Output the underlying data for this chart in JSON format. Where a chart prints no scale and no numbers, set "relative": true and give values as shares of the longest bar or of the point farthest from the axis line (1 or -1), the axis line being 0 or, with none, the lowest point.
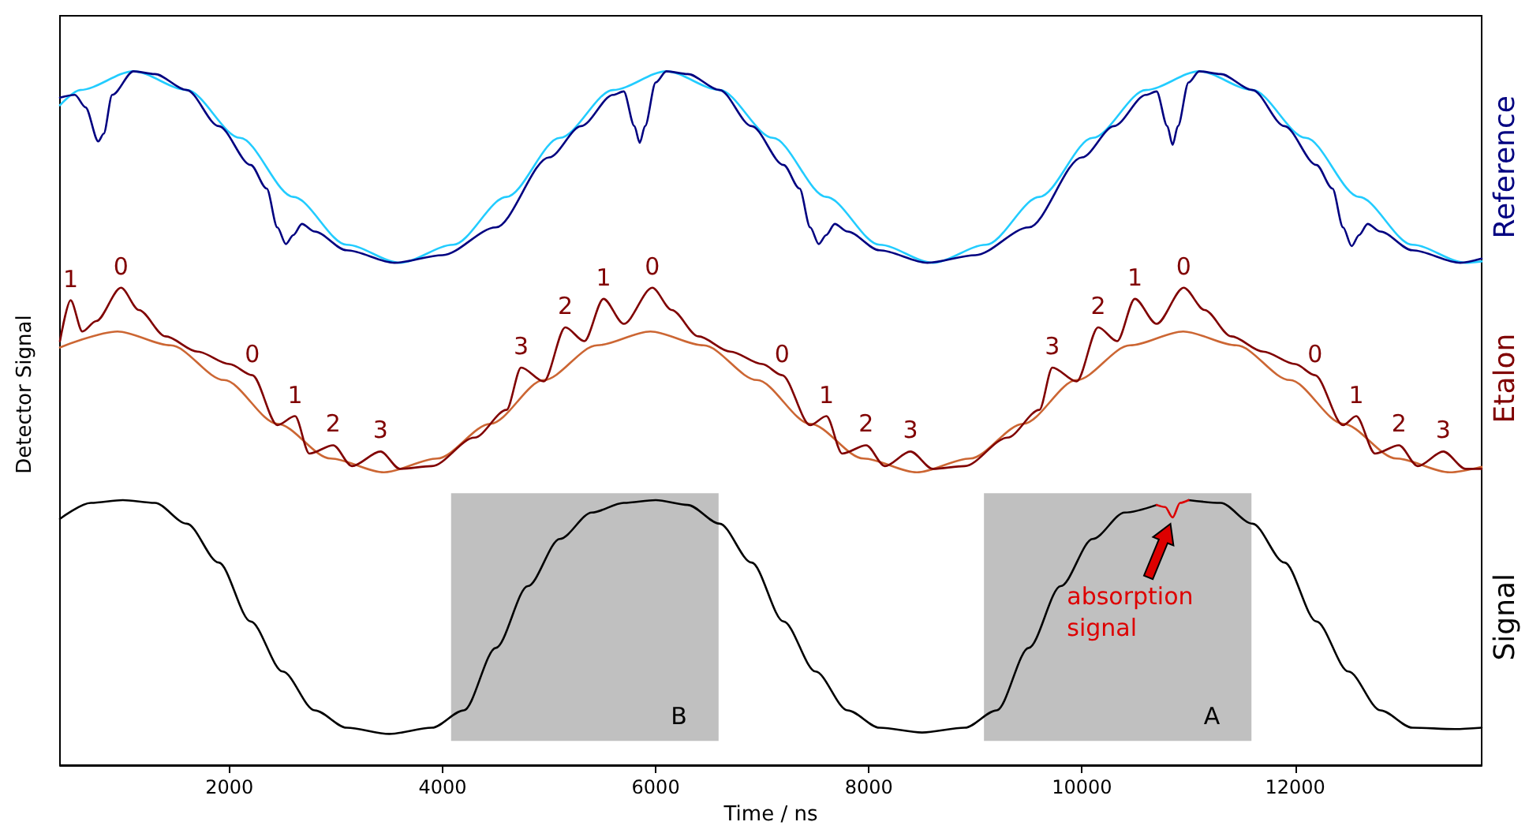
{
  "chart_data": {
    "type": "line",
    "xlabel": "Time / ns",
    "ylabel": "Detector Signal",
    "relative": true,
    "xlim": [
      410,
      13750
    ],
    "xticks": [
      2000,
      4000,
      6000,
      8000,
      10000,
      12000
    ],
    "grid": false,
    "legend": false,
    "marker": "none",
    "line_style": "solid",
    "series": [
      {
        "color": "#22ccff",
        "x": [
          410,
          600,
          1100,
          1600,
          2100,
          2600,
          3100,
          3600,
          4100,
          4600,
          5100,
          5600,
          6100,
          6600,
          7100,
          7600,
          8100,
          8600,
          9100,
          9600,
          10100,
          10600,
          11100,
          11600,
          12100,
          12600,
          13100,
          13600,
          13750
        ],
        "values": [
          0.951,
          0.973,
          1.0,
          0.973,
          0.904,
          0.819,
          0.75,
          0.724,
          0.75,
          0.819,
          0.904,
          0.973,
          1.0,
          0.973,
          0.904,
          0.819,
          0.75,
          0.724,
          0.75,
          0.819,
          0.904,
          0.973,
          1.0,
          0.973,
          0.904,
          0.819,
          0.75,
          0.724,
          0.726
        ]
      },
      {
        "name": "Reference",
        "color": "#000080",
        "x": [
          410,
          550,
          650,
          770,
          820,
          900,
          1100,
          1300,
          1600,
          1900,
          2200,
          2350,
          2450,
          2530,
          2600,
          2680,
          2800,
          3100,
          3550,
          4000,
          4500,
          5000,
          5300,
          5600,
          5700,
          5800,
          5850,
          5900,
          6000,
          6100,
          6300,
          6600,
          6900,
          7200,
          7350,
          7450,
          7530,
          7600,
          7680,
          7800,
          8100,
          8550,
          9000,
          9500,
          10000,
          10300,
          10600,
          10700,
          10800,
          10850,
          10900,
          11000,
          11100,
          11300,
          11600,
          11900,
          12200,
          12350,
          12450,
          12530,
          12600,
          12680,
          12800,
          13100,
          13550,
          13750
        ],
        "values": [
          0.962,
          0.966,
          0.948,
          0.899,
          0.91,
          0.966,
          1.0,
          0.996,
          0.973,
          0.921,
          0.865,
          0.831,
          0.775,
          0.751,
          0.764,
          0.78,
          0.769,
          0.742,
          0.724,
          0.735,
          0.775,
          0.876,
          0.921,
          0.966,
          0.971,
          0.921,
          0.897,
          0.921,
          0.984,
          1.0,
          0.996,
          0.973,
          0.921,
          0.865,
          0.831,
          0.775,
          0.751,
          0.764,
          0.78,
          0.769,
          0.742,
          0.724,
          0.735,
          0.775,
          0.876,
          0.921,
          0.966,
          0.971,
          0.921,
          0.894,
          0.921,
          0.984,
          1.0,
          0.996,
          0.973,
          0.921,
          0.865,
          0.831,
          0.775,
          0.748,
          0.764,
          0.78,
          0.769,
          0.742,
          0.724,
          0.73
        ]
      },
      {
        "color": "#cc6633",
        "x": [
          410,
          950,
          1450,
          1950,
          2450,
          2950,
          3450,
          3950,
          4450,
          4950,
          5450,
          5950,
          6450,
          6950,
          7450,
          7950,
          8450,
          8950,
          9450,
          9950,
          10450,
          10950,
          11450,
          11950,
          12450,
          12950,
          13450,
          13750
        ],
        "values": [
          0.602,
          0.625,
          0.605,
          0.555,
          0.492,
          0.442,
          0.422,
          0.442,
          0.492,
          0.555,
          0.605,
          0.625,
          0.605,
          0.555,
          0.492,
          0.442,
          0.422,
          0.442,
          0.492,
          0.555,
          0.605,
          0.625,
          0.605,
          0.555,
          0.492,
          0.442,
          0.422,
          0.43
        ]
      },
      {
        "name": "Etalon",
        "color": "#800000",
        "x": [
          410,
          510,
          620,
          750,
          983,
          1150,
          1400,
          1700,
          2000,
          2215,
          2450,
          2616,
          2750,
          2974,
          3150,
          3418,
          3600,
          3900,
          4300,
          4600,
          4737,
          4950,
          5152,
          5330,
          5510,
          5700,
          5968,
          6150,
          6400,
          6700,
          7000,
          7186,
          7450,
          7602,
          7750,
          7975,
          8150,
          8390,
          8600,
          8900,
          9300,
          9600,
          9722,
          9950,
          10152,
          10330,
          10496,
          10700,
          10954,
          11150,
          11400,
          11700,
          12000,
          12186,
          12450,
          12573,
          12750,
          12974,
          13150,
          13390,
          13600,
          13750
        ],
        "values": [
          0.611,
          0.67,
          0.625,
          0.64,
          0.688,
          0.656,
          0.618,
          0.596,
          0.578,
          0.562,
          0.49,
          0.503,
          0.449,
          0.461,
          0.431,
          0.452,
          0.427,
          0.431,
          0.472,
          0.512,
          0.573,
          0.553,
          0.631,
          0.611,
          0.672,
          0.636,
          0.688,
          0.656,
          0.618,
          0.596,
          0.578,
          0.562,
          0.49,
          0.503,
          0.449,
          0.461,
          0.431,
          0.452,
          0.427,
          0.431,
          0.472,
          0.512,
          0.573,
          0.553,
          0.631,
          0.611,
          0.672,
          0.636,
          0.688,
          0.656,
          0.618,
          0.596,
          0.578,
          0.562,
          0.49,
          0.503,
          0.449,
          0.461,
          0.431,
          0.452,
          0.427,
          0.427
        ]
      },
      {
        "name": "Signal",
        "color": "#000000",
        "x": [
          410,
          700,
          1000,
          1300,
          1600,
          1900,
          2200,
          2500,
          2800,
          3100,
          3500,
          3900,
          4200,
          4500,
          4800,
          5100,
          5400,
          5700,
          6000,
          6300,
          6600,
          6900,
          7200,
          7500,
          7800,
          8100,
          8500,
          8900,
          9200,
          9500,
          9800,
          10100,
          10400,
          10700,
          10850,
          11000,
          11300,
          11600,
          11900,
          12200,
          12500,
          12800,
          13100,
          13500,
          13750
        ],
        "values": [
          0.355,
          0.378,
          0.382,
          0.378,
          0.348,
          0.292,
          0.207,
          0.135,
          0.079,
          0.054,
          0.045,
          0.054,
          0.079,
          0.169,
          0.258,
          0.326,
          0.364,
          0.378,
          0.382,
          0.375,
          0.348,
          0.292,
          0.207,
          0.135,
          0.079,
          0.054,
          0.047,
          0.054,
          0.079,
          0.169,
          0.258,
          0.326,
          0.364,
          0.375,
          null,
          0.382,
          0.378,
          0.348,
          0.292,
          0.207,
          0.135,
          0.079,
          0.054,
          0.052,
          0.054
        ]
      },
      {
        "color": "#dd0000",
        "x": [
          10700,
          10780,
          10850,
          10920,
          11000
        ],
        "values": [
          0.375,
          0.372,
          0.357,
          0.378,
          0.382
        ]
      }
    ],
    "bands": [
      {
        "axis": "x",
        "from": 4080,
        "to": 6590,
        "label": "B",
        "color": "#c0c0c0"
      },
      {
        "axis": "x",
        "from": 9080,
        "to": 11590,
        "label": "A",
        "color": "#c0c0c0"
      }
    ],
    "annotations": [
      {
        "text": "1",
        "x": 510,
        "y": 0.67
      },
      {
        "text": "0",
        "x": 983,
        "y": 0.688
      },
      {
        "text": "0",
        "x": 2215,
        "y": 0.562
      },
      {
        "text": "1",
        "x": 2616,
        "y": 0.503
      },
      {
        "text": "2",
        "x": 2974,
        "y": 0.461
      },
      {
        "text": "3",
        "x": 3418,
        "y": 0.452
      },
      {
        "text": "3",
        "x": 4737,
        "y": 0.573
      },
      {
        "text": "2",
        "x": 5152,
        "y": 0.631
      },
      {
        "text": "1",
        "x": 5510,
        "y": 0.672
      },
      {
        "text": "0",
        "x": 5968,
        "y": 0.688
      },
      {
        "text": "0",
        "x": 7186,
        "y": 0.562
      },
      {
        "text": "1",
        "x": 7602,
        "y": 0.503
      },
      {
        "text": "2",
        "x": 7975,
        "y": 0.461
      },
      {
        "text": "3",
        "x": 8390,
        "y": 0.452
      },
      {
        "text": "3",
        "x": 9722,
        "y": 0.573
      },
      {
        "text": "2",
        "x": 10152,
        "y": 0.631
      },
      {
        "text": "1",
        "x": 10496,
        "y": 0.672
      },
      {
        "text": "0",
        "x": 10954,
        "y": 0.688
      },
      {
        "text": "0",
        "x": 12186,
        "y": 0.562
      },
      {
        "text": "1",
        "x": 12573,
        "y": 0.503
      },
      {
        "text": "2",
        "x": 12974,
        "y": 0.461
      },
      {
        "text": "3",
        "x": 13390,
        "y": 0.452
      },
      {
        "text": "absorption signal",
        "x": 10850,
        "y": 0.357
      }
    ]
  }
}
